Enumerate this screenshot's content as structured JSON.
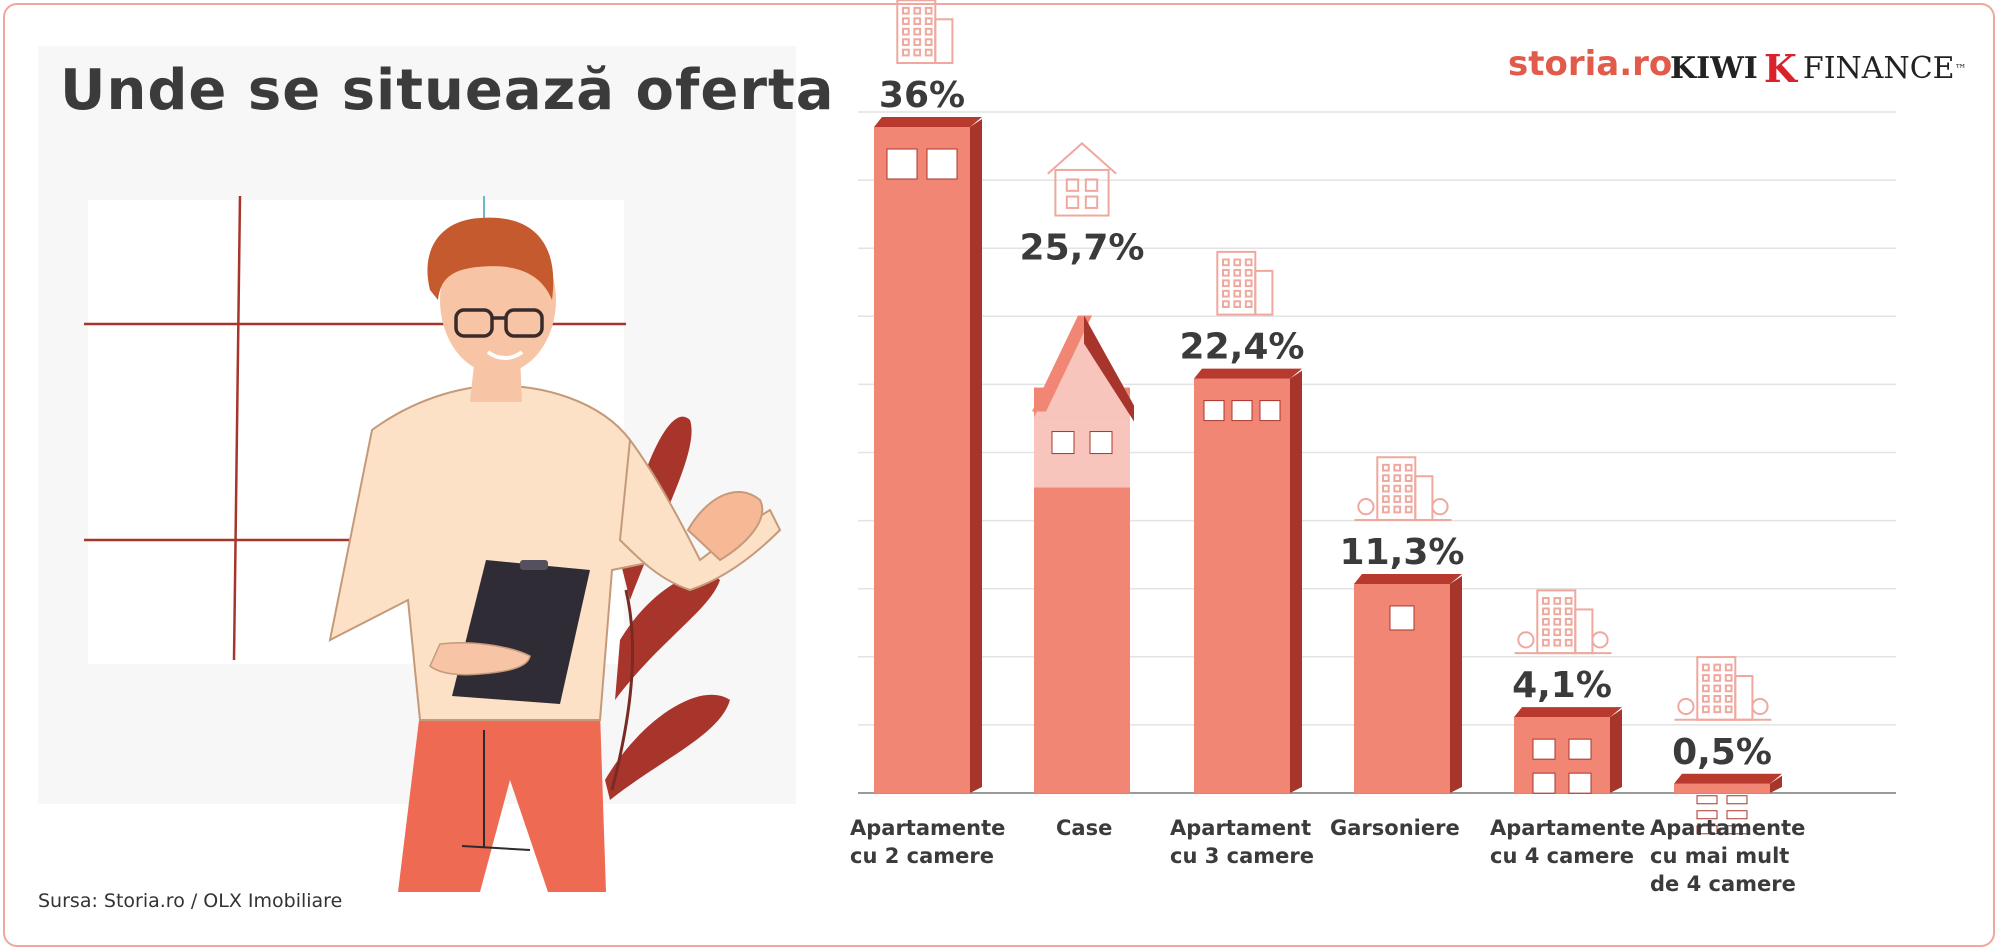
{
  "title": "Unde se situează oferta",
  "source": "Sursa: Storia.ro / OLX Imobiliare",
  "logos": {
    "storia": "storia.ro",
    "kiwi_first": "KIWI",
    "kiwi_mark": "K",
    "kiwi_second": "FINANCE",
    "kiwi_tm": "™"
  },
  "colors": {
    "bar": "#f28674",
    "bar_side": "#a8352c",
    "bar_top": "#b83a2f",
    "house_gable": "#f7c5bc",
    "icon": "#f0a89e",
    "accent": "#e25a4a"
  },
  "chart_data": {
    "type": "bar",
    "categories": [
      "Apartamente cu 2 camere",
      "Case",
      "Apartament cu 3 camere",
      "Garsoniere",
      "Apartamente cu 4 camere",
      "Apartamente cu mai mult de 4 camere"
    ],
    "category_lines": [
      [
        "Apartamente",
        "cu 2 camere"
      ],
      [
        "Case"
      ],
      [
        "Apartament",
        "cu 3 camere"
      ],
      [
        "Garsoniere"
      ],
      [
        "Apartamente",
        "cu 4 camere"
      ],
      [
        "Apartamente",
        "cu mai mult",
        "de 4 camere"
      ]
    ],
    "values": [
      36,
      25.7,
      22.4,
      11.3,
      4.1,
      0.5
    ],
    "value_labels": [
      "36%",
      "25,7%",
      "22,4%",
      "11,3%",
      "4,1%",
      "0,5%"
    ],
    "unit": "%",
    "icons": [
      "building-icon",
      "house-icon",
      "building-icon",
      "building-trees-icon",
      "town-icon",
      "town-icon"
    ],
    "grid": true,
    "legend": "none"
  }
}
